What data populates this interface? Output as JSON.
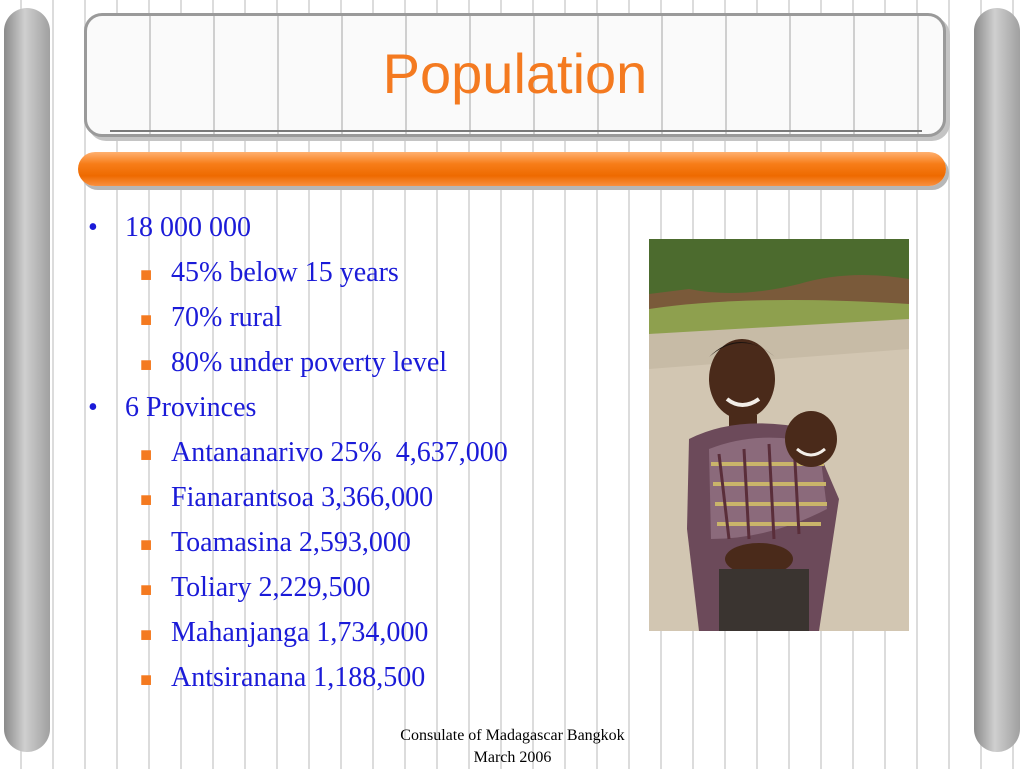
{
  "slide": {
    "title": "Population",
    "bullets": [
      {
        "text": "18 000 000"
      },
      {
        "text": "45% below 15 years"
      },
      {
        "text": "70% rural"
      },
      {
        "text": "80% under poverty level"
      },
      {
        "text": "6 Provinces"
      },
      {
        "text": "Antananarivo 25%  4,637,000"
      },
      {
        "text": "Fianarantsoa 3,366,000"
      },
      {
        "text": "Toamasina 2,593,000"
      },
      {
        "text": "Toliary 2,229,500"
      },
      {
        "text": "Mahanjanga 1,734,000"
      },
      {
        "text": "Antsiranana 1,188,500"
      }
    ],
    "footer": {
      "line1": "Consulate of Madagascar Bangkok",
      "line2": "March 2006"
    }
  },
  "colors": {
    "title": "#f47a20",
    "bullet_text": "#1b1bd8",
    "sub_bullet_marker": "#f47a20",
    "accent_bar": "#f77d18"
  },
  "icons": {
    "level1_bullet": "bullet-dot-icon",
    "level2_bullet": "square-bullet-icon"
  }
}
